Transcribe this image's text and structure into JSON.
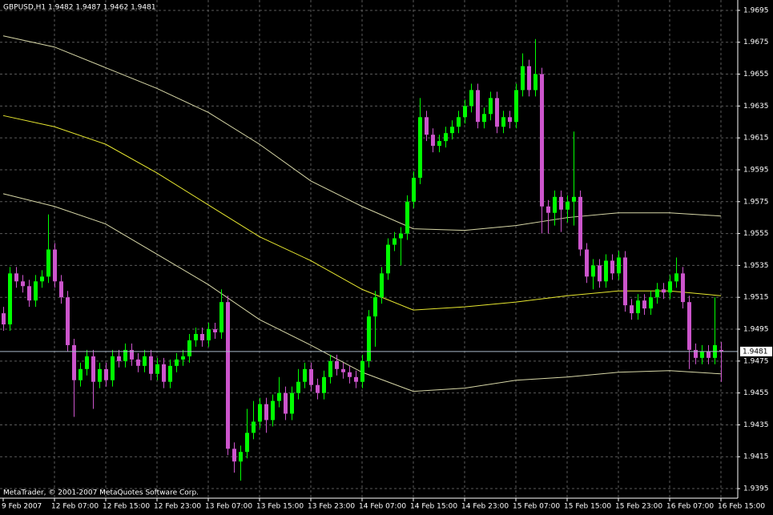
{
  "chart_data": {
    "type": "candlestick",
    "title": "GBPUSD,H1  1.9482 1.9487 1.9462 1.9481",
    "footer": "MetaTrader, © 2001-2007 MetaQuotes Software Corp.",
    "up_color": "#00ff00",
    "down_color": "#cc55cc",
    "grid": true,
    "open": [
      1.9505,
      1.9498,
      1.953,
      1.9525,
      1.9522,
      1.9513,
      1.9525,
      1.9528,
      1.9545,
      1.9525,
      1.9515,
      1.9485,
      1.9463,
      1.947,
      1.9478,
      1.9462,
      1.947,
      1.9463,
      1.9478,
      1.9475,
      1.9482,
      1.9476,
      1.9472,
      1.9478,
      1.9467,
      1.9473,
      1.9462,
      1.9472,
      1.9476,
      1.9478,
      1.9488,
      1.9492,
      1.9488,
      1.9495,
      1.9493,
      1.9512,
      1.942,
      1.9412,
      1.9418,
      1.943,
      1.9437,
      1.9448,
      1.9438,
      1.945,
      1.9455,
      1.9442,
      1.9455,
      1.9462,
      1.947,
      1.946,
      1.9455,
      1.9465,
      1.9475,
      1.947,
      1.9468,
      1.9465,
      1.9462,
      1.9475,
      1.9503,
      1.9515,
      1.953,
      1.9548,
      1.9552,
      1.9555,
      1.9575,
      1.959,
      1.9628,
      1.9617,
      1.961,
      1.9613,
      1.9618,
      1.9622,
      1.9628,
      1.9635,
      1.9645,
      1.9625,
      1.963,
      1.964,
      1.9622,
      1.9628,
      1.9625,
      1.9645,
      1.966,
      1.9645,
      1.9655,
      1.9572,
      1.9568,
      1.9578,
      1.957,
      1.9575,
      1.9578,
      1.9545,
      1.9528,
      1.9535,
      1.9525,
      1.9538,
      1.953,
      1.954,
      1.951,
      1.9505,
      1.9513,
      1.9508,
      1.9515,
      1.952,
      1.9518,
      1.9525,
      1.953,
      1.9512,
      1.9482,
      1.9477,
      1.9481,
      1.9477,
      1.9482
    ],
    "high": [
      1.9509,
      1.9534,
      1.9534,
      1.9529,
      1.9526,
      1.9529,
      1.9532,
      1.9567,
      1.9549,
      1.9529,
      1.9519,
      1.9489,
      1.9474,
      1.9482,
      1.9482,
      1.9474,
      1.9474,
      1.9482,
      1.9482,
      1.9486,
      1.9486,
      1.948,
      1.9482,
      1.9482,
      1.9477,
      1.9477,
      1.9476,
      1.948,
      1.9482,
      1.9492,
      1.9496,
      1.9496,
      1.9499,
      1.9499,
      1.952,
      1.9516,
      1.9424,
      1.9422,
      1.9445,
      1.945,
      1.9452,
      1.9452,
      1.9454,
      1.9465,
      1.9459,
      1.9459,
      1.947,
      1.9474,
      1.9474,
      1.9464,
      1.9469,
      1.9479,
      1.9479,
      1.9474,
      1.9472,
      1.9469,
      1.9479,
      1.9507,
      1.9519,
      1.9534,
      1.9552,
      1.9556,
      1.9559,
      1.9579,
      1.9594,
      1.964,
      1.9632,
      1.9621,
      1.9617,
      1.9622,
      1.9626,
      1.9632,
      1.9639,
      1.9649,
      1.9649,
      1.9634,
      1.9644,
      1.9644,
      1.9632,
      1.9632,
      1.9649,
      1.9668,
      1.9664,
      1.9677,
      1.9659,
      1.9576,
      1.9582,
      1.9582,
      1.9579,
      1.9619,
      1.9582,
      1.9549,
      1.9539,
      1.9539,
      1.9542,
      1.9542,
      1.9544,
      1.9544,
      1.9514,
      1.9517,
      1.9517,
      1.9519,
      1.9524,
      1.9524,
      1.9529,
      1.954,
      1.9534,
      1.9516,
      1.9486,
      1.9485,
      1.9485,
      1.9515,
      1.9487
    ],
    "low": [
      1.9494,
      1.9494,
      1.9521,
      1.9518,
      1.9509,
      1.9509,
      1.9521,
      1.9524,
      1.9521,
      1.9511,
      1.9481,
      1.944,
      1.9459,
      1.9466,
      1.9445,
      1.9458,
      1.9459,
      1.9459,
      1.9471,
      1.9471,
      1.9472,
      1.9468,
      1.9468,
      1.9463,
      1.9463,
      1.9458,
      1.9458,
      1.9468,
      1.9472,
      1.9474,
      1.9484,
      1.9484,
      1.9484,
      1.9489,
      1.9489,
      1.9416,
      1.9405,
      1.94,
      1.9414,
      1.9426,
      1.9433,
      1.943,
      1.9434,
      1.9446,
      1.9438,
      1.9438,
      1.9451,
      1.9458,
      1.9456,
      1.9451,
      1.9451,
      1.9461,
      1.9466,
      1.9464,
      1.9461,
      1.9458,
      1.9458,
      1.9471,
      1.9484,
      1.9511,
      1.9526,
      1.9544,
      1.9535,
      1.9551,
      1.9571,
      1.9586,
      1.9613,
      1.9606,
      1.9606,
      1.9609,
      1.9614,
      1.9618,
      1.9624,
      1.9631,
      1.9621,
      1.9621,
      1.9626,
      1.9618,
      1.9618,
      1.9621,
      1.9621,
      1.9641,
      1.9641,
      1.9641,
      1.9555,
      1.9555,
      1.956,
      1.9556,
      1.9562,
      1.956,
      1.9541,
      1.9524,
      1.952,
      1.9521,
      1.9521,
      1.9526,
      1.9526,
      1.9506,
      1.9501,
      1.9501,
      1.9504,
      1.9504,
      1.9511,
      1.9514,
      1.9514,
      1.9521,
      1.9508,
      1.947,
      1.9473,
      1.9473,
      1.9473,
      1.9473,
      1.9462
    ],
    "close": [
      1.9498,
      1.953,
      1.9525,
      1.9522,
      1.9513,
      1.9525,
      1.9528,
      1.9545,
      1.9525,
      1.9515,
      1.9485,
      1.9463,
      1.947,
      1.9478,
      1.9462,
      1.947,
      1.9463,
      1.9478,
      1.9475,
      1.9482,
      1.9476,
      1.9472,
      1.9478,
      1.9467,
      1.9473,
      1.9462,
      1.9472,
      1.9476,
      1.9478,
      1.9488,
      1.9492,
      1.9488,
      1.9495,
      1.9493,
      1.9512,
      1.942,
      1.9412,
      1.9418,
      1.943,
      1.9437,
      1.9448,
      1.9438,
      1.945,
      1.9455,
      1.9442,
      1.9455,
      1.9462,
      1.947,
      1.946,
      1.9455,
      1.9465,
      1.9475,
      1.947,
      1.9468,
      1.9465,
      1.9462,
      1.9475,
      1.9503,
      1.9515,
      1.953,
      1.9548,
      1.9552,
      1.9555,
      1.9575,
      1.959,
      1.9628,
      1.9617,
      1.961,
      1.9613,
      1.9618,
      1.9622,
      1.9628,
      1.9635,
      1.9645,
      1.9625,
      1.963,
      1.964,
      1.9622,
      1.9628,
      1.9625,
      1.9645,
      1.966,
      1.9645,
      1.9655,
      1.9572,
      1.9568,
      1.9578,
      1.957,
      1.9575,
      1.9578,
      1.9545,
      1.9528,
      1.9535,
      1.9525,
      1.9538,
      1.953,
      1.954,
      1.951,
      1.9505,
      1.9513,
      1.9508,
      1.9515,
      1.952,
      1.9518,
      1.9525,
      1.953,
      1.9512,
      1.9482,
      1.9477,
      1.9481,
      1.9477,
      1.9485,
      1.9481
    ],
    "lines": [
      {
        "color": "#d8d8a8",
        "x": [
          0,
          8,
          16,
          24,
          32,
          40,
          48,
          56,
          64,
          72,
          80,
          88,
          96,
          104,
          112
        ],
        "values": [
          1.9679,
          1.9672,
          1.9659,
          1.9646,
          1.9631,
          1.9611,
          1.9588,
          1.9572,
          1.9558,
          1.9557,
          1.956,
          1.9565,
          1.9568,
          1.9568,
          1.9566
        ]
      },
      {
        "color": "#e8e830",
        "x": [
          0,
          8,
          16,
          24,
          32,
          40,
          48,
          56,
          64,
          72,
          80,
          88,
          96,
          104,
          112
        ],
        "values": [
          1.9629,
          1.9622,
          1.9611,
          1.9593,
          1.9573,
          1.9553,
          1.9538,
          1.952,
          1.9507,
          1.9509,
          1.9512,
          1.9516,
          1.9519,
          1.9519,
          1.9516
        ]
      },
      {
        "color": "#d8d8a8",
        "x": [
          0,
          8,
          16,
          24,
          32,
          40,
          48,
          56,
          64,
          72,
          80,
          88,
          96,
          104,
          112
        ],
        "values": [
          1.958,
          1.9572,
          1.9561,
          1.9542,
          1.9523,
          1.9501,
          1.9485,
          1.9468,
          1.9456,
          1.9458,
          1.9463,
          1.9465,
          1.9468,
          1.9469,
          1.9467
        ]
      }
    ],
    "last_price": 1.9481,
    "ylim": [
      1.9389,
      1.97015
    ],
    "yticks": [
      1.9695,
      1.9675,
      1.9655,
      1.9635,
      1.9615,
      1.9595,
      1.9575,
      1.9555,
      1.9535,
      1.9515,
      1.9495,
      1.9475,
      1.9455,
      1.9435,
      1.9415,
      1.9395
    ],
    "xticks": [
      {
        "value": 0,
        "label": "9 Feb 2007"
      },
      {
        "value": 8,
        "label": "12 Feb 07:00"
      },
      {
        "value": 16,
        "label": "12 Feb 15:00"
      },
      {
        "value": 24,
        "label": "12 Feb 23:00"
      },
      {
        "value": 32,
        "label": "13 Feb 07:00"
      },
      {
        "value": 40,
        "label": "13 Feb 15:00"
      },
      {
        "value": 48,
        "label": "13 Feb 23:00"
      },
      {
        "value": 56,
        "label": "14 Feb 07:00"
      },
      {
        "value": 64,
        "label": "14 Feb 15:00"
      },
      {
        "value": 72,
        "label": "14 Feb 23:00"
      },
      {
        "value": 80,
        "label": "15 Feb 07:00"
      },
      {
        "value": 88,
        "label": "15 Feb 15:00"
      },
      {
        "value": 96,
        "label": "15 Feb 23:00"
      },
      {
        "value": 104,
        "label": "16 Feb 07:00"
      },
      {
        "value": 112,
        "label": "16 Feb 15:00"
      }
    ]
  }
}
